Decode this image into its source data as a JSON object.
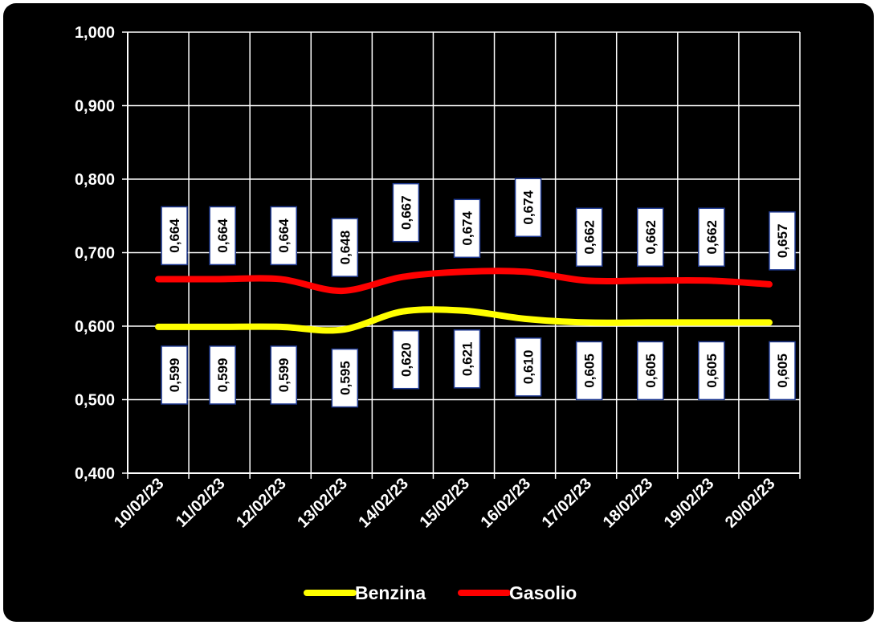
{
  "chart_data": {
    "type": "line",
    "title": "",
    "xlabel": "",
    "ylabel": "",
    "categories": [
      "10/02/23",
      "11/02/23",
      "12/02/23",
      "13/02/23",
      "14/02/23",
      "15/02/23",
      "16/02/23",
      "17/02/23",
      "18/02/23",
      "19/02/23",
      "20/02/23"
    ],
    "ylim": [
      0.4,
      1.0
    ],
    "yticks": [
      "0,400",
      "0,500",
      "0,600",
      "0,700",
      "0,800",
      "0,900",
      "1,000"
    ],
    "grid": true,
    "legend_position": "bottom",
    "series": [
      {
        "name": "Benzina",
        "color": "#ffff00",
        "values": [
          0.599,
          0.599,
          0.599,
          0.595,
          0.62,
          0.621,
          0.61,
          0.605,
          0.605,
          0.605,
          0.605
        ],
        "labels": [
          "0,599",
          "0,599",
          "0,599",
          "0,595",
          "0,620",
          "0,621",
          "0,610",
          "0,605",
          "0,605",
          "0,605",
          "0,605"
        ]
      },
      {
        "name": "Gasolio",
        "color": "#ff0000",
        "values": [
          0.664,
          0.664,
          0.664,
          0.648,
          0.667,
          0.674,
          0.674,
          0.662,
          0.662,
          0.662,
          0.657
        ],
        "labels": [
          "0,664",
          "0,664",
          "0,664",
          "0,648",
          "0,667",
          "0,674",
          "0,674",
          "0,662",
          "0,662",
          "0,662",
          "0,657"
        ]
      }
    ]
  }
}
